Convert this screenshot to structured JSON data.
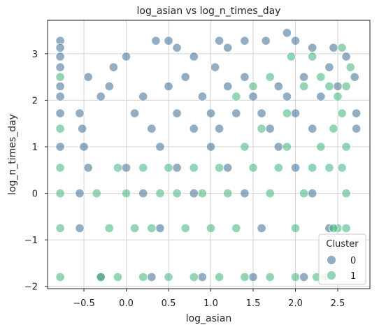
{
  "chart_data": {
    "type": "scatter",
    "title": "log_asian vs log_n_times_day",
    "xlabel": "log_asian",
    "ylabel": "log_n_times_day",
    "xlim": [
      -0.93,
      2.88
    ],
    "ylim": [
      -2.05,
      3.72
    ],
    "xticks": [
      -0.5,
      0.0,
      0.5,
      1.0,
      1.5,
      2.0,
      2.5
    ],
    "xtick_labels": [
      "−0.5",
      "0.0",
      "0.5",
      "1.0",
      "1.5",
      "2.0",
      "2.5"
    ],
    "yticks": [
      -2,
      -1,
      0,
      1,
      2,
      3
    ],
    "ytick_labels": [
      "−2",
      "−1",
      "0",
      "1",
      "2",
      "3"
    ],
    "grid": true,
    "legend": {
      "title": "Cluster",
      "placement": "lower right",
      "entries": [
        "0",
        "1"
      ]
    },
    "series": [
      {
        "name": "0",
        "color": "#3b6a8f",
        "points": [
          [
            -0.78,
            3.28
          ],
          [
            -0.78,
            3.13
          ],
          [
            -0.78,
            2.94
          ],
          [
            -0.78,
            2.71
          ],
          [
            -0.78,
            2.3
          ],
          [
            -0.78,
            2.08
          ],
          [
            -0.78,
            1.72
          ],
          [
            -0.78,
            1.0
          ],
          [
            -0.2,
            2.3
          ],
          [
            -0.15,
            2.71
          ],
          [
            0.0,
            2.94
          ],
          [
            0.35,
            3.28
          ],
          [
            0.5,
            3.28
          ],
          [
            0.6,
            3.13
          ],
          [
            0.8,
            2.94
          ],
          [
            1.1,
            3.28
          ],
          [
            1.2,
            3.13
          ],
          [
            1.4,
            3.28
          ],
          [
            1.65,
            3.28
          ],
          [
            1.9,
            3.45
          ],
          [
            2.0,
            3.28
          ],
          [
            2.2,
            3.13
          ],
          [
            2.45,
            3.13
          ],
          [
            2.6,
            2.94
          ],
          [
            2.7,
            2.5
          ],
          [
            2.72,
            1.72
          ],
          [
            2.72,
            1.39
          ],
          [
            -0.45,
            2.5
          ],
          [
            -0.3,
            2.08
          ],
          [
            -0.55,
            1.72
          ],
          [
            -0.52,
            1.39
          ],
          [
            -0.5,
            1.0
          ],
          [
            -0.45,
            0.55
          ],
          [
            -0.55,
            0.0
          ],
          [
            -0.55,
            -0.75
          ],
          [
            -0.3,
            -1.8
          ],
          [
            0.1,
            1.72
          ],
          [
            0.2,
            2.08
          ],
          [
            0.3,
            1.39
          ],
          [
            0.4,
            1.0
          ],
          [
            0.5,
            2.3
          ],
          [
            0.6,
            1.72
          ],
          [
            0.7,
            2.5
          ],
          [
            0.8,
            1.39
          ],
          [
            0.9,
            2.08
          ],
          [
            1.0,
            1.72
          ],
          [
            1.05,
            2.71
          ],
          [
            1.1,
            1.39
          ],
          [
            1.2,
            2.3
          ],
          [
            1.3,
            1.72
          ],
          [
            1.4,
            2.5
          ],
          [
            1.5,
            2.08
          ],
          [
            1.6,
            1.72
          ],
          [
            1.7,
            1.39
          ],
          [
            1.8,
            2.3
          ],
          [
            1.9,
            2.08
          ],
          [
            2.0,
            1.72
          ],
          [
            2.1,
            2.5
          ],
          [
            2.2,
            1.39
          ],
          [
            2.3,
            2.08
          ],
          [
            2.4,
            2.71
          ],
          [
            2.5,
            2.3
          ],
          [
            0.0,
            0.55
          ],
          [
            0.2,
            0.0
          ],
          [
            0.4,
            -0.75
          ],
          [
            0.6,
            0.55
          ],
          [
            0.8,
            0.0
          ],
          [
            1.0,
            1.0
          ],
          [
            1.2,
            0.55
          ],
          [
            1.4,
            0.0
          ],
          [
            1.6,
            -0.75
          ],
          [
            1.8,
            1.0
          ],
          [
            2.0,
            0.55
          ],
          [
            2.2,
            0.0
          ],
          [
            2.4,
            -0.75
          ],
          [
            0.3,
            -1.8
          ],
          [
            0.9,
            -1.8
          ],
          [
            1.5,
            -1.8
          ],
          [
            2.1,
            -1.8
          ]
        ]
      },
      {
        "name": "1",
        "color": "#3cb37a",
        "points": [
          [
            -0.78,
            2.5
          ],
          [
            -0.78,
            1.39
          ],
          [
            -0.78,
            0.55
          ],
          [
            -0.78,
            0.0
          ],
          [
            -0.78,
            -0.75
          ],
          [
            -0.78,
            -1.8
          ],
          [
            2.55,
            3.13
          ],
          [
            2.65,
            2.71
          ],
          [
            2.6,
            2.3
          ],
          [
            2.55,
            1.72
          ],
          [
            2.6,
            1.0
          ],
          [
            2.55,
            0.55
          ],
          [
            2.6,
            0.0
          ],
          [
            2.5,
            -0.75
          ],
          [
            2.35,
            -1.8
          ],
          [
            2.45,
            1.39
          ],
          [
            2.4,
            0.55
          ],
          [
            2.3,
            1.0
          ],
          [
            2.2,
            0.55
          ],
          [
            2.1,
            0.0
          ],
          [
            2.0,
            -0.75
          ],
          [
            1.9,
            1.0
          ],
          [
            1.8,
            0.55
          ],
          [
            1.7,
            0.0
          ],
          [
            1.6,
            1.39
          ],
          [
            1.5,
            0.55
          ],
          [
            1.4,
            1.0
          ],
          [
            1.3,
            -0.75
          ],
          [
            1.2,
            0.0
          ],
          [
            1.1,
            0.55
          ],
          [
            1.0,
            -0.75
          ],
          [
            0.9,
            0.0
          ],
          [
            0.8,
            0.55
          ],
          [
            0.7,
            -0.75
          ],
          [
            0.6,
            0.0
          ],
          [
            0.5,
            0.55
          ],
          [
            0.4,
            0.0
          ],
          [
            0.3,
            -0.75
          ],
          [
            0.2,
            0.55
          ],
          [
            0.1,
            -0.75
          ],
          [
            0.0,
            0.0
          ],
          [
            -0.1,
            0.55
          ],
          [
            -0.2,
            -0.75
          ],
          [
            -0.35,
            0.0
          ],
          [
            -0.3,
            -1.8
          ],
          [
            -0.1,
            -1.8
          ],
          [
            0.2,
            -1.8
          ],
          [
            0.5,
            -1.8
          ],
          [
            0.8,
            -1.8
          ],
          [
            1.1,
            -1.8
          ],
          [
            1.4,
            -1.8
          ],
          [
            1.7,
            -1.8
          ],
          [
            2.0,
            -1.8
          ],
          [
            2.25,
            -1.8
          ],
          [
            1.5,
            2.3
          ],
          [
            1.7,
            2.5
          ],
          [
            1.9,
            1.72
          ],
          [
            2.1,
            2.3
          ],
          [
            2.3,
            2.5
          ],
          [
            1.3,
            2.08
          ],
          [
            2.4,
            2.3
          ],
          [
            2.5,
            2.08
          ],
          [
            2.6,
            -0.75
          ],
          [
            2.45,
            -0.75
          ],
          [
            1.95,
            2.94
          ],
          [
            2.2,
            2.94
          ]
        ]
      }
    ]
  }
}
